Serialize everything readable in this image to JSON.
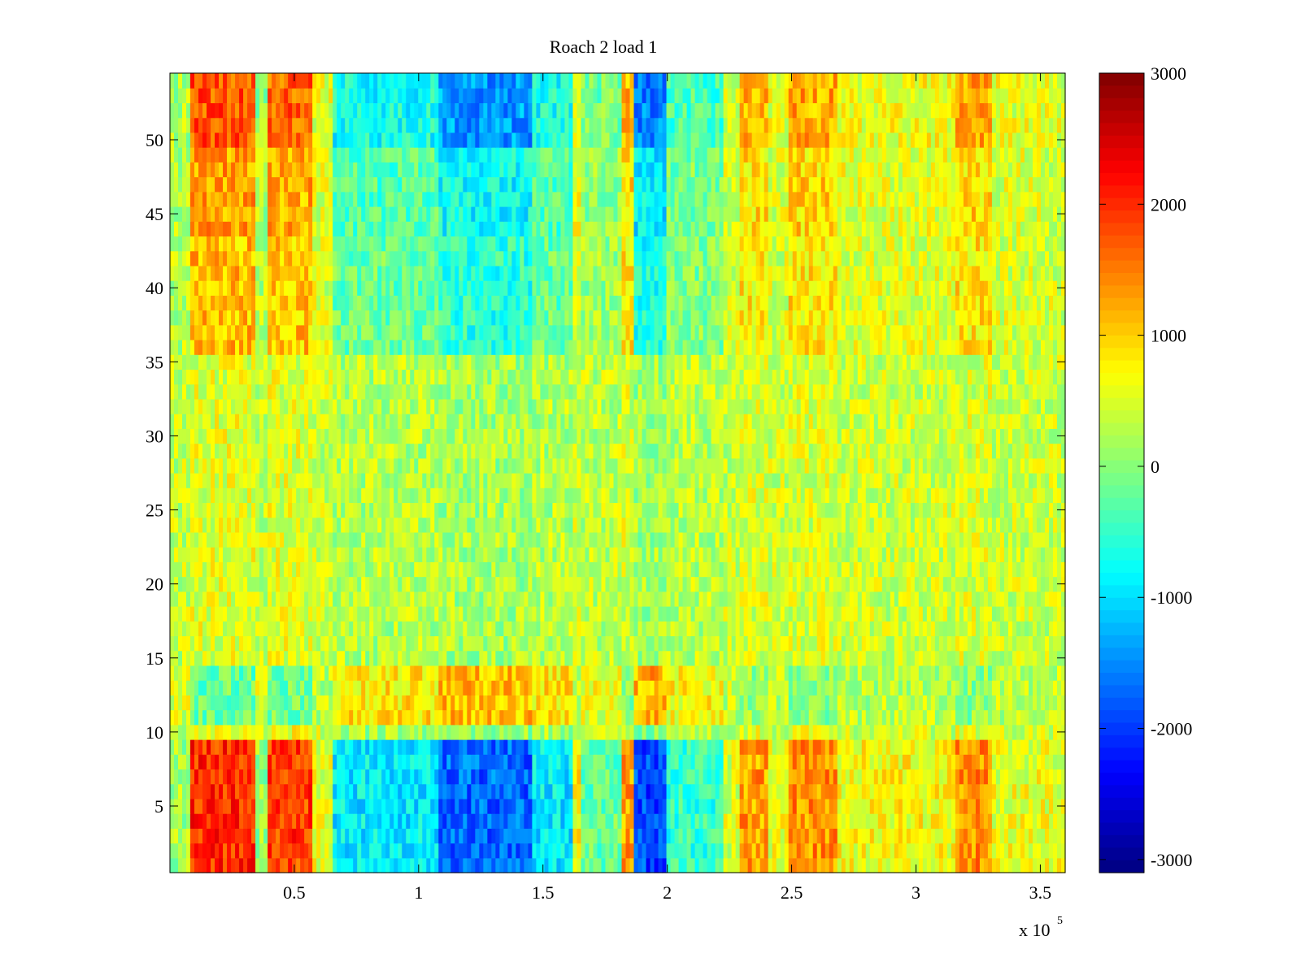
{
  "chart_data": {
    "type": "heatmap",
    "title": "Roach 2 load 1",
    "xlabel": "",
    "ylabel": "",
    "xlim": [
      0,
      360000
    ],
    "ylim": [
      0.5,
      54.5
    ],
    "x_exponent_label": {
      "base": "x 10",
      "exponent": "5"
    },
    "x_ticks": [
      {
        "value": 0.5,
        "label": "0.5"
      },
      {
        "value": 1,
        "label": "1"
      },
      {
        "value": 1.5,
        "label": "1.5"
      },
      {
        "value": 2,
        "label": "2"
      },
      {
        "value": 2.5,
        "label": "2.5"
      },
      {
        "value": 3,
        "label": "3"
      },
      {
        "value": 3.5,
        "label": "3.5"
      }
    ],
    "y_ticks": [
      {
        "value": 5,
        "label": "5"
      },
      {
        "value": 10,
        "label": "10"
      },
      {
        "value": 15,
        "label": "15"
      },
      {
        "value": 20,
        "label": "20"
      },
      {
        "value": 25,
        "label": "25"
      },
      {
        "value": 30,
        "label": "30"
      },
      {
        "value": 35,
        "label": "35"
      },
      {
        "value": 40,
        "label": "40"
      },
      {
        "value": 45,
        "label": "45"
      },
      {
        "value": 50,
        "label": "50"
      }
    ],
    "n_rows": 54,
    "colormap": "jet",
    "clim": [
      -3100,
      3000
    ],
    "colorbar": {
      "ticks": [
        {
          "value": 3000,
          "label": "3000"
        },
        {
          "value": 2000,
          "label": "2000"
        },
        {
          "value": 1000,
          "label": "1000"
        },
        {
          "value": 0,
          "label": "0"
        },
        {
          "value": -1000,
          "label": "-1000"
        },
        {
          "value": -2000,
          "label": "-2000"
        },
        {
          "value": -3000,
          "label": "-3000"
        }
      ]
    },
    "x_segments": [
      {
        "x0": 0,
        "x1": 9000,
        "base": -200
      },
      {
        "x0": 9000,
        "x1": 34000,
        "base": 1600
      },
      {
        "x0": 34000,
        "x1": 39000,
        "base": -300
      },
      {
        "x0": 39000,
        "x1": 57000,
        "base": 1500
      },
      {
        "x0": 57000,
        "x1": 66000,
        "base": 200
      },
      {
        "x0": 66000,
        "x1": 108000,
        "base": -1300
      },
      {
        "x0": 108000,
        "x1": 145000,
        "base": -2100
      },
      {
        "x0": 145000,
        "x1": 162000,
        "base": -1300
      },
      {
        "x0": 162000,
        "x1": 165000,
        "base": 400
      },
      {
        "x0": 165000,
        "x1": 182000,
        "base": -600
      },
      {
        "x0": 182000,
        "x1": 187000,
        "base": 900
      },
      {
        "x0": 187000,
        "x1": 200000,
        "base": -2300
      },
      {
        "x0": 200000,
        "x1": 222000,
        "base": -900
      },
      {
        "x0": 222000,
        "x1": 229000,
        "base": 100
      },
      {
        "x0": 229000,
        "x1": 240000,
        "base": 900
      },
      {
        "x0": 240000,
        "x1": 249000,
        "base": 200
      },
      {
        "x0": 249000,
        "x1": 269000,
        "base": 1000
      },
      {
        "x0": 269000,
        "x1": 316000,
        "base": 300
      },
      {
        "x0": 316000,
        "x1": 330000,
        "base": 1000
      },
      {
        "x0": 330000,
        "x1": 360000,
        "base": 200
      }
    ],
    "row_bands": [
      {
        "y0": 1,
        "y1": 9,
        "scale": 1.0
      },
      {
        "y0": 10,
        "y1": 10,
        "scale": 0.15
      },
      {
        "y0": 11,
        "y1": 14,
        "scale": -0.35
      },
      {
        "y0": 15,
        "y1": 35,
        "scale": 0.1
      },
      {
        "y0": 36,
        "y1": 43,
        "scale": 0.45
      },
      {
        "y0": 44,
        "y1": 49,
        "scale": 0.55
      },
      {
        "y0": 50,
        "y1": 54,
        "scale": 0.85
      }
    ]
  }
}
